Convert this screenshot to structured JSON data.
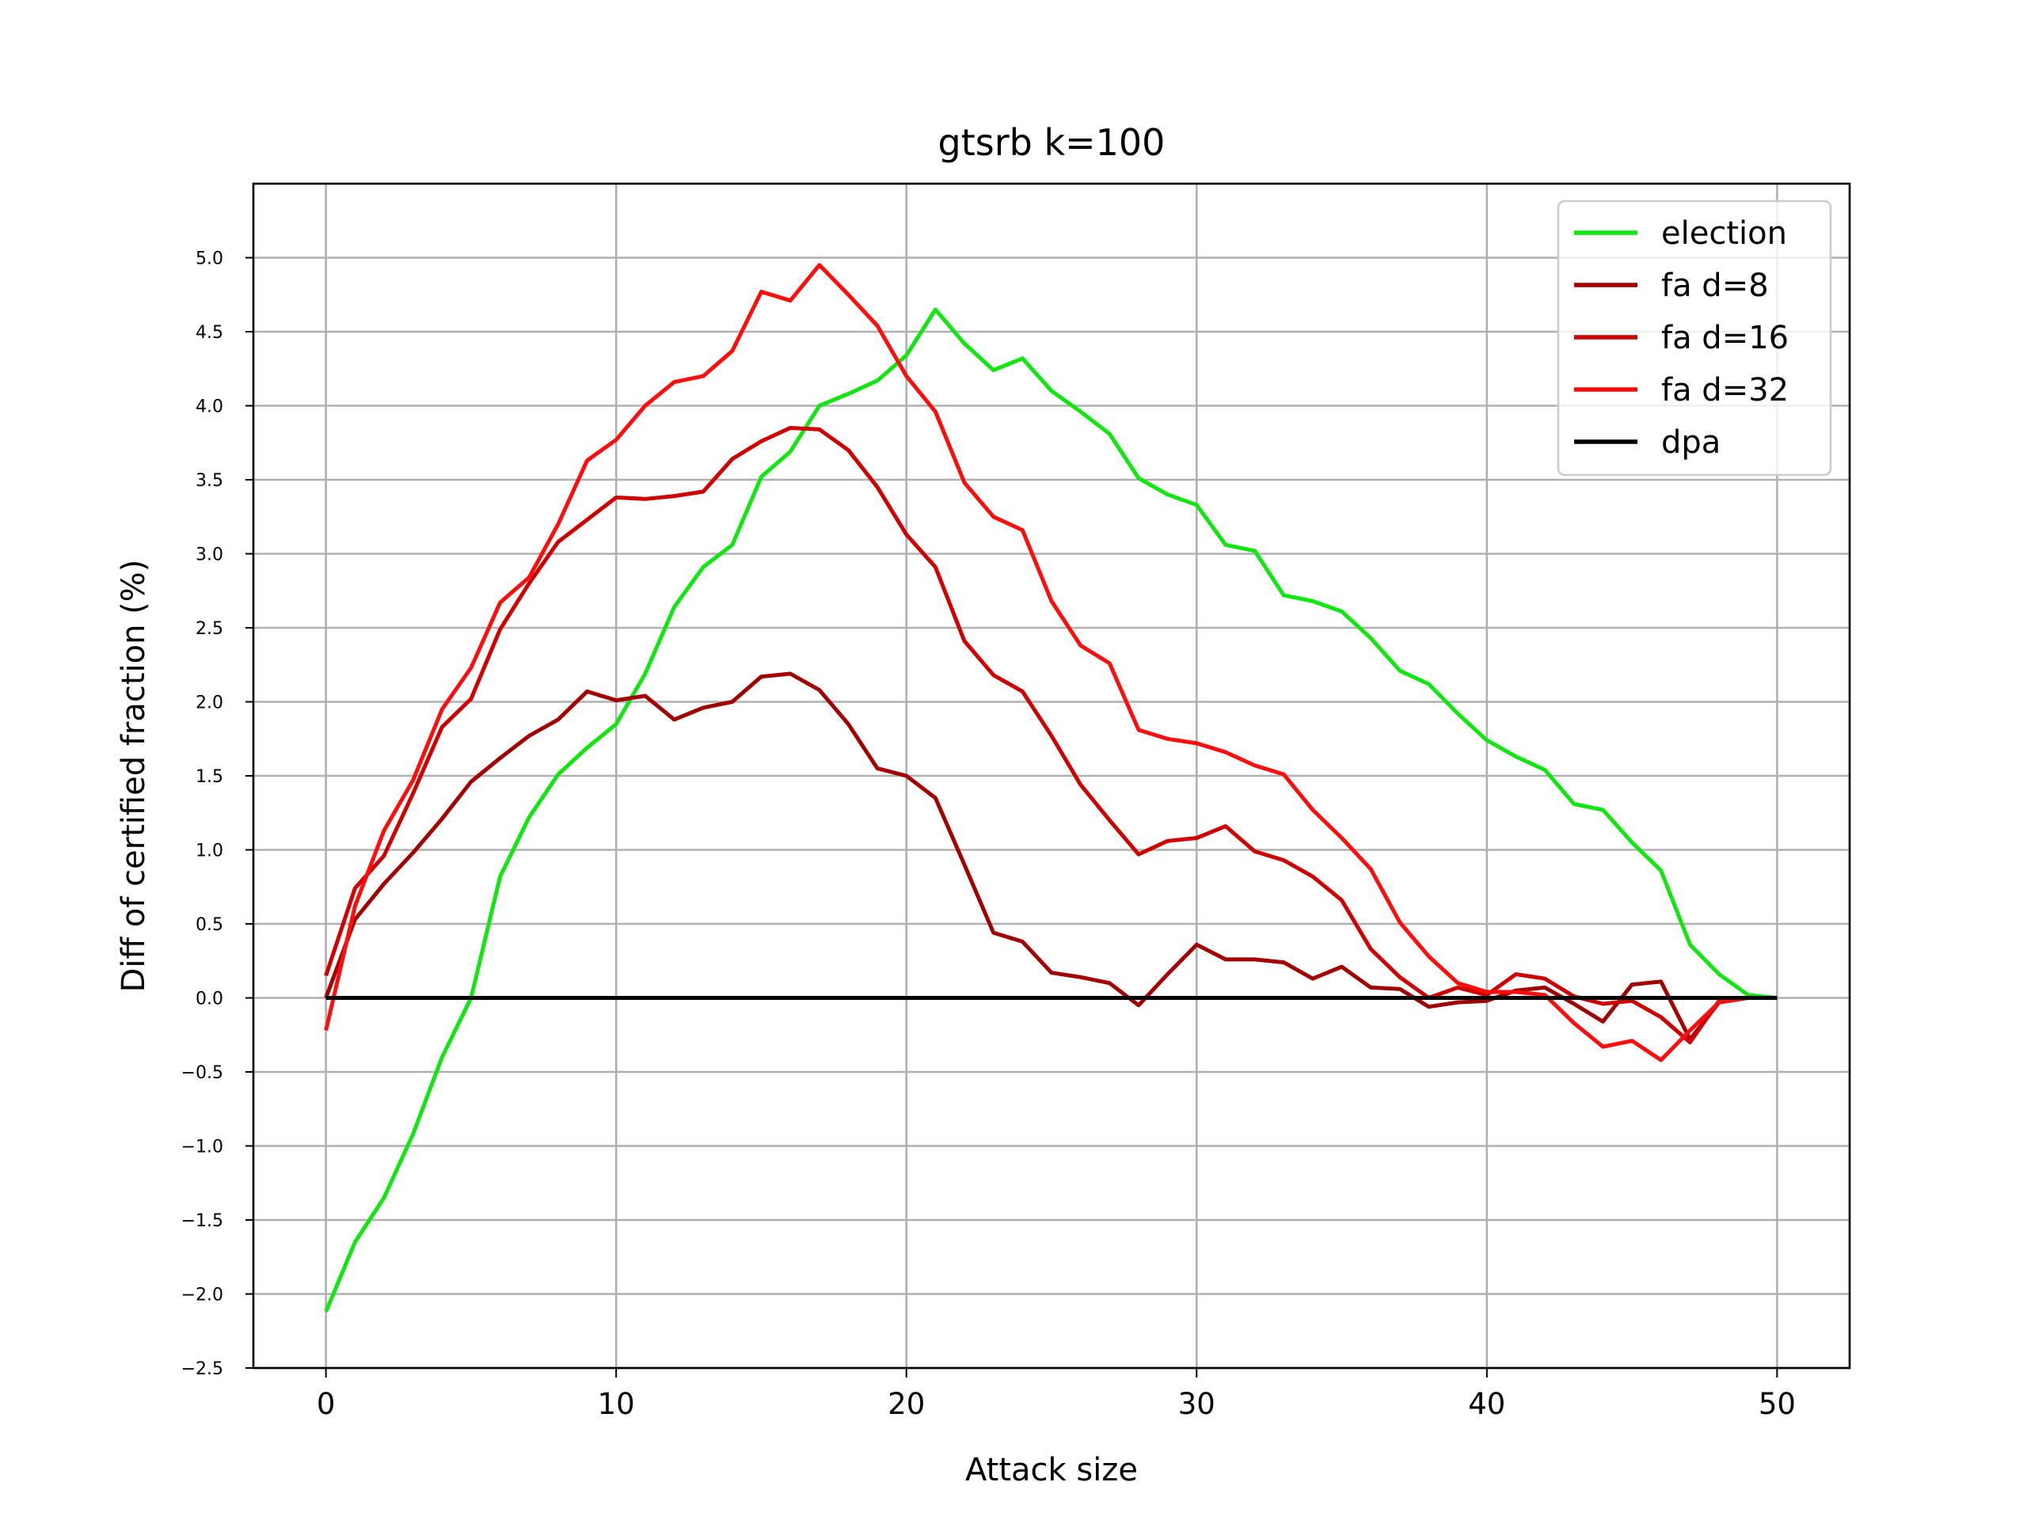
{
  "chart_data": {
    "type": "line",
    "title": "gtsrb k=100",
    "xlabel": "Attack size",
    "ylabel": "Diff of certified fraction (%)",
    "xlim": [
      -2.5,
      52.5
    ],
    "ylim": [
      -2.5,
      5.5
    ],
    "xticks": [
      0,
      10,
      20,
      30,
      40,
      50
    ],
    "yticks": [
      -2.5,
      -2.0,
      -1.5,
      -1.0,
      -0.5,
      0.0,
      0.5,
      1.0,
      1.5,
      2.0,
      2.5,
      3.0,
      3.5,
      4.0,
      4.5,
      5.0
    ],
    "grid": true,
    "legend_position": "top-right",
    "x": [
      0,
      1,
      2,
      3,
      4,
      5,
      6,
      7,
      8,
      9,
      10,
      11,
      12,
      13,
      14,
      15,
      16,
      17,
      18,
      19,
      20,
      21,
      22,
      23,
      24,
      25,
      26,
      27,
      28,
      29,
      30,
      31,
      32,
      33,
      34,
      35,
      36,
      37,
      38,
      39,
      40,
      41,
      42,
      43,
      44,
      45,
      46,
      47,
      48,
      49,
      50
    ],
    "series": [
      {
        "name": "election",
        "color": "#11e611",
        "values": [
          -2.12,
          -1.65,
          -1.35,
          -0.92,
          -0.4,
          0.0,
          0.82,
          1.22,
          1.51,
          1.69,
          1.85,
          2.19,
          2.64,
          2.91,
          3.06,
          3.52,
          3.69,
          4.0,
          4.08,
          4.17,
          4.34,
          4.65,
          4.42,
          4.24,
          4.32,
          4.1,
          3.96,
          3.81,
          3.51,
          3.4,
          3.33,
          3.06,
          3.02,
          2.72,
          2.68,
          2.61,
          2.43,
          2.21,
          2.12,
          1.92,
          1.74,
          1.63,
          1.54,
          1.31,
          1.27,
          1.05,
          0.86,
          0.36,
          0.16,
          0.02,
          0.0
        ]
      },
      {
        "name": "fa d=8",
        "color": "#a30000",
        "values": [
          0.0,
          0.53,
          0.77,
          0.98,
          1.21,
          1.46,
          1.62,
          1.77,
          1.88,
          2.07,
          2.01,
          2.04,
          1.88,
          1.96,
          2.0,
          2.17,
          2.19,
          2.08,
          1.85,
          1.55,
          1.5,
          1.35,
          0.9,
          0.44,
          0.38,
          0.17,
          0.14,
          0.1,
          -0.05,
          0.16,
          0.36,
          0.26,
          0.26,
          0.24,
          0.13,
          0.21,
          0.07,
          0.06,
          -0.06,
          -0.03,
          -0.02,
          0.05,
          0.07,
          -0.04,
          -0.16,
          0.09,
          0.11,
          -0.28,
          -0.03,
          0.0,
          0.0
        ]
      },
      {
        "name": "fa d=16",
        "color": "#cf0000",
        "values": [
          0.15,
          0.74,
          0.96,
          1.38,
          1.83,
          2.02,
          2.49,
          2.8,
          3.08,
          3.23,
          3.38,
          3.37,
          3.39,
          3.42,
          3.64,
          3.76,
          3.85,
          3.84,
          3.7,
          3.45,
          3.13,
          2.91,
          2.41,
          2.18,
          2.07,
          1.77,
          1.44,
          1.2,
          0.97,
          1.06,
          1.08,
          1.16,
          0.99,
          0.93,
          0.82,
          0.66,
          0.33,
          0.14,
          0.0,
          0.07,
          0.02,
          0.16,
          0.13,
          0.01,
          -0.04,
          -0.02,
          -0.13,
          -0.3,
          -0.02,
          0.0,
          0.0
        ]
      },
      {
        "name": "fa d=32",
        "color": "#ff0d0d",
        "values": [
          -0.22,
          0.62,
          1.13,
          1.47,
          1.95,
          2.23,
          2.67,
          2.84,
          3.2,
          3.63,
          3.77,
          4.0,
          4.16,
          4.2,
          4.37,
          4.77,
          4.71,
          4.95,
          4.75,
          4.54,
          4.2,
          3.96,
          3.48,
          3.25,
          3.16,
          2.68,
          2.38,
          2.26,
          1.81,
          1.75,
          1.72,
          1.66,
          1.57,
          1.51,
          1.27,
          1.08,
          0.87,
          0.51,
          0.28,
          0.1,
          0.04,
          0.04,
          0.02,
          -0.17,
          -0.33,
          -0.29,
          -0.42,
          -0.22,
          -0.03,
          0.0,
          0.0
        ]
      },
      {
        "name": "dpa",
        "color": "#000000",
        "values": [
          0,
          0,
          0,
          0,
          0,
          0,
          0,
          0,
          0,
          0,
          0,
          0,
          0,
          0,
          0,
          0,
          0,
          0,
          0,
          0,
          0,
          0,
          0,
          0,
          0,
          0,
          0,
          0,
          0,
          0,
          0,
          0,
          0,
          0,
          0,
          0,
          0,
          0,
          0,
          0,
          0,
          0,
          0,
          0,
          0,
          0,
          0,
          0,
          0,
          0,
          0
        ]
      }
    ]
  }
}
